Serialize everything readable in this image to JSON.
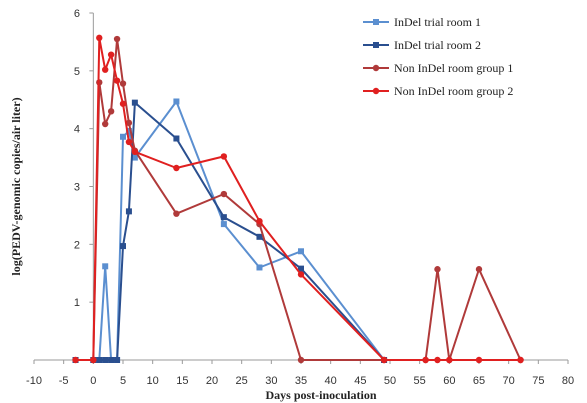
{
  "chart_data": {
    "type": "line",
    "title": "",
    "xlabel": "Days post-inoculation",
    "ylabel": "log(PEDV-genomic copies/air liter)",
    "xlim": [
      -10,
      80
    ],
    "ylim": [
      0,
      6
    ],
    "x_ticks": [
      -10,
      -5,
      0,
      5,
      10,
      15,
      20,
      25,
      30,
      35,
      40,
      45,
      50,
      55,
      60,
      65,
      70,
      75,
      80
    ],
    "y_ticks": [
      1,
      2,
      3,
      4,
      5,
      6
    ],
    "grid": false,
    "legend_position": "top-right",
    "series": [
      {
        "name": "InDel trial room 1",
        "color": "#5b8fd0",
        "marker": "square",
        "points": [
          [
            -3,
            0
          ],
          [
            0,
            0
          ],
          [
            1,
            0
          ],
          [
            2,
            1.62
          ],
          [
            3,
            0
          ],
          [
            4,
            0
          ],
          [
            5,
            3.86
          ],
          [
            6,
            3.96
          ],
          [
            7,
            3.5
          ],
          [
            14,
            4.47
          ],
          [
            22,
            2.35
          ],
          [
            28,
            1.6
          ],
          [
            35,
            1.88
          ],
          [
            49,
            0
          ]
        ]
      },
      {
        "name": "InDel trial room 2",
        "color": "#2a4f8f",
        "marker": "square",
        "points": [
          [
            -3,
            0
          ],
          [
            0,
            0
          ],
          [
            1,
            0
          ],
          [
            2,
            0
          ],
          [
            3,
            0
          ],
          [
            4,
            0
          ],
          [
            5,
            1.97
          ],
          [
            6,
            2.57
          ],
          [
            7,
            4.45
          ],
          [
            14,
            3.83
          ],
          [
            22,
            2.47
          ],
          [
            28,
            2.13
          ],
          [
            35,
            1.58
          ],
          [
            49,
            0
          ]
        ]
      },
      {
        "name": "Non InDel room group 1",
        "color": "#b03a3a",
        "marker": "circle",
        "points": [
          [
            0,
            0
          ],
          [
            1,
            4.8
          ],
          [
            2,
            4.08
          ],
          [
            3,
            4.3
          ],
          [
            4,
            5.55
          ],
          [
            5,
            4.78
          ],
          [
            6,
            4.1
          ],
          [
            7,
            3.62
          ],
          [
            14,
            2.53
          ],
          [
            22,
            2.87
          ],
          [
            28,
            2.35
          ],
          [
            35,
            0
          ],
          [
            49,
            0
          ],
          [
            56,
            0
          ],
          [
            58,
            1.57
          ],
          [
            60,
            0
          ],
          [
            65,
            1.57
          ],
          [
            72,
            0
          ]
        ]
      },
      {
        "name": "Non InDel room group 2",
        "color": "#e02020",
        "marker": "circle",
        "points": [
          [
            -3,
            0
          ],
          [
            0,
            0
          ],
          [
            1,
            5.57
          ],
          [
            2,
            5.02
          ],
          [
            3,
            5.28
          ],
          [
            4,
            4.83
          ],
          [
            5,
            4.43
          ],
          [
            6,
            3.77
          ],
          [
            7,
            3.6
          ],
          [
            14,
            3.32
          ],
          [
            22,
            3.52
          ],
          [
            28,
            2.4
          ],
          [
            35,
            1.48
          ],
          [
            49,
            0
          ],
          [
            56,
            0
          ],
          [
            58,
            0
          ],
          [
            60,
            0
          ],
          [
            65,
            0
          ],
          [
            72,
            0
          ]
        ]
      }
    ]
  }
}
